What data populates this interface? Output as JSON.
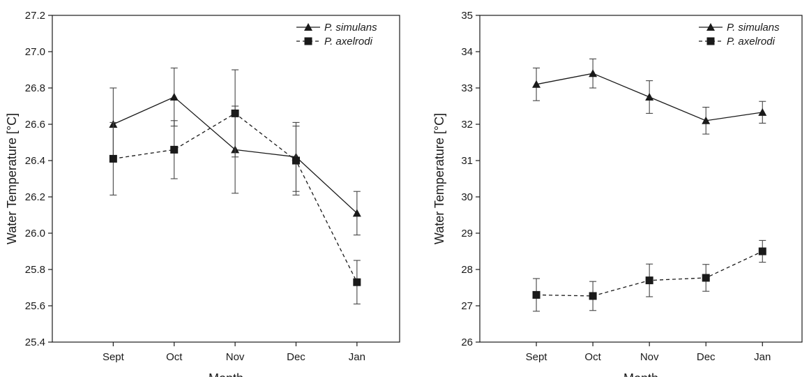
{
  "chart_data": [
    {
      "type": "line",
      "categories": [
        "Sept",
        "Oct",
        "Nov",
        "Dec",
        "Jan"
      ],
      "ylabel": "Water Temperature [°C]",
      "xlabel": "Month",
      "ylim": [
        25.4,
        27.2
      ],
      "yticks": [
        25.4,
        25.6,
        25.8,
        26.0,
        26.2,
        26.4,
        26.6,
        26.8,
        27.0,
        27.2
      ],
      "tick_decimals": 1,
      "legend": "top-right",
      "series": [
        {
          "name": "P. simulans",
          "marker": "triangle",
          "line": "solid",
          "values": [
            26.6,
            26.75,
            26.46,
            26.42,
            26.11
          ],
          "errors": [
            0.2,
            0.16,
            0.24,
            0.19,
            0.12
          ]
        },
        {
          "name": "P. axelrodi",
          "marker": "square",
          "line": "dashed",
          "values": [
            26.41,
            26.46,
            26.66,
            26.4,
            25.73
          ],
          "errors": [
            0.2,
            0.16,
            0.24,
            0.19,
            0.12
          ]
        }
      ]
    },
    {
      "type": "line",
      "categories": [
        "Sept",
        "Oct",
        "Nov",
        "Dec",
        "Jan"
      ],
      "ylabel": "Water Temperature [°C]",
      "xlabel": "Month",
      "ylim": [
        26,
        35
      ],
      "yticks": [
        26,
        27,
        28,
        29,
        30,
        31,
        32,
        33,
        34,
        35
      ],
      "tick_decimals": 0,
      "legend": "top-right",
      "series": [
        {
          "name": "P. simulans",
          "marker": "triangle",
          "line": "solid",
          "values": [
            33.1,
            33.4,
            32.75,
            32.1,
            32.33
          ],
          "errors": [
            0.45,
            0.4,
            0.45,
            0.37,
            0.3
          ]
        },
        {
          "name": "P. axelrodi",
          "marker": "square",
          "line": "dashed",
          "values": [
            27.3,
            27.27,
            27.7,
            27.77,
            28.5
          ],
          "errors": [
            0.45,
            0.4,
            0.45,
            0.37,
            0.3
          ]
        }
      ]
    }
  ]
}
